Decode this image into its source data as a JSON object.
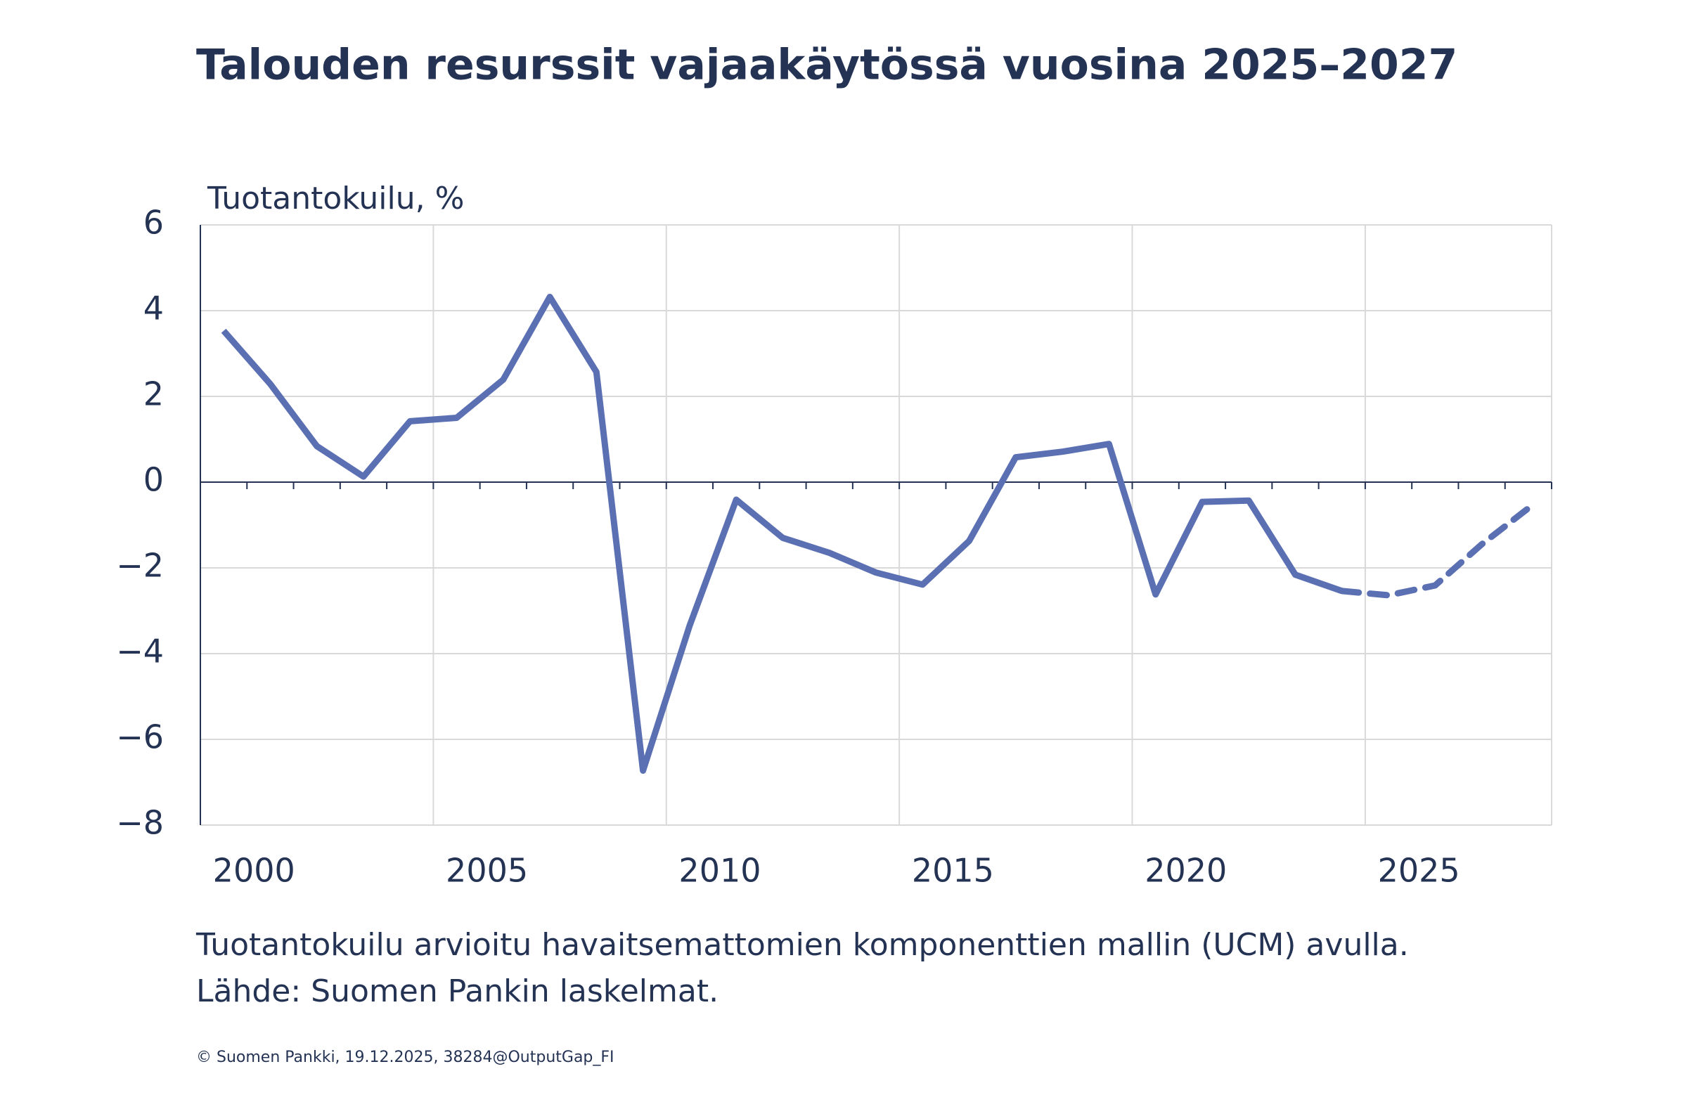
{
  "chart_data": {
    "type": "line",
    "title": "Talouden resurssit vajaakäytössä vuosina 2025–2027",
    "y_label": "Tuotantokuilu, %",
    "notes": [
      "Tuotantokuilu arvioitu havaitsemattomien komponenttien mallin (UCM) avulla.",
      "Lähde: Suomen Pankin laskelmat."
    ],
    "credit": "© Suomen Pankki, 19.12.2025, 38284@OutputGap_FI",
    "categories": [
      null,
      "2000",
      null,
      null,
      null,
      null,
      "2005",
      null,
      null,
      null,
      null,
      "2010",
      null,
      null,
      null,
      null,
      "2015",
      null,
      null,
      null,
      null,
      "2020",
      null,
      null,
      null,
      null,
      "2025",
      null,
      null
    ],
    "series": [
      {
        "color": "#5b6fb3",
        "style": "solid",
        "values": [
          3.53,
          2.29,
          0.84,
          0.13,
          1.42,
          1.5,
          2.39,
          4.32,
          2.57,
          -6.73,
          -3.35,
          -0.41,
          -1.3,
          -1.65,
          -2.11,
          -2.39,
          -1.37,
          0.58,
          0.71,
          0.89,
          -2.62,
          -0.46,
          -0.43,
          -2.16,
          -2.54,
          null,
          null,
          null,
          null
        ]
      },
      {
        "color": "#5b6fb3",
        "style": "dashed",
        "values": [
          null,
          null,
          null,
          null,
          null,
          null,
          null,
          null,
          null,
          null,
          null,
          null,
          null,
          null,
          null,
          null,
          null,
          null,
          null,
          null,
          null,
          null,
          null,
          null,
          -2.54,
          -2.64,
          -2.41,
          -1.45,
          -0.61
        ]
      }
    ],
    "ylim": [
      -8,
      6
    ],
    "yticks": [
      {
        "value": -8,
        "label": "−8"
      },
      {
        "value": -6,
        "label": "−6"
      },
      {
        "value": -4,
        "label": "−4"
      },
      {
        "value": -2,
        "label": "−2"
      },
      0,
      2,
      4,
      6
    ],
    "grid": true
  }
}
